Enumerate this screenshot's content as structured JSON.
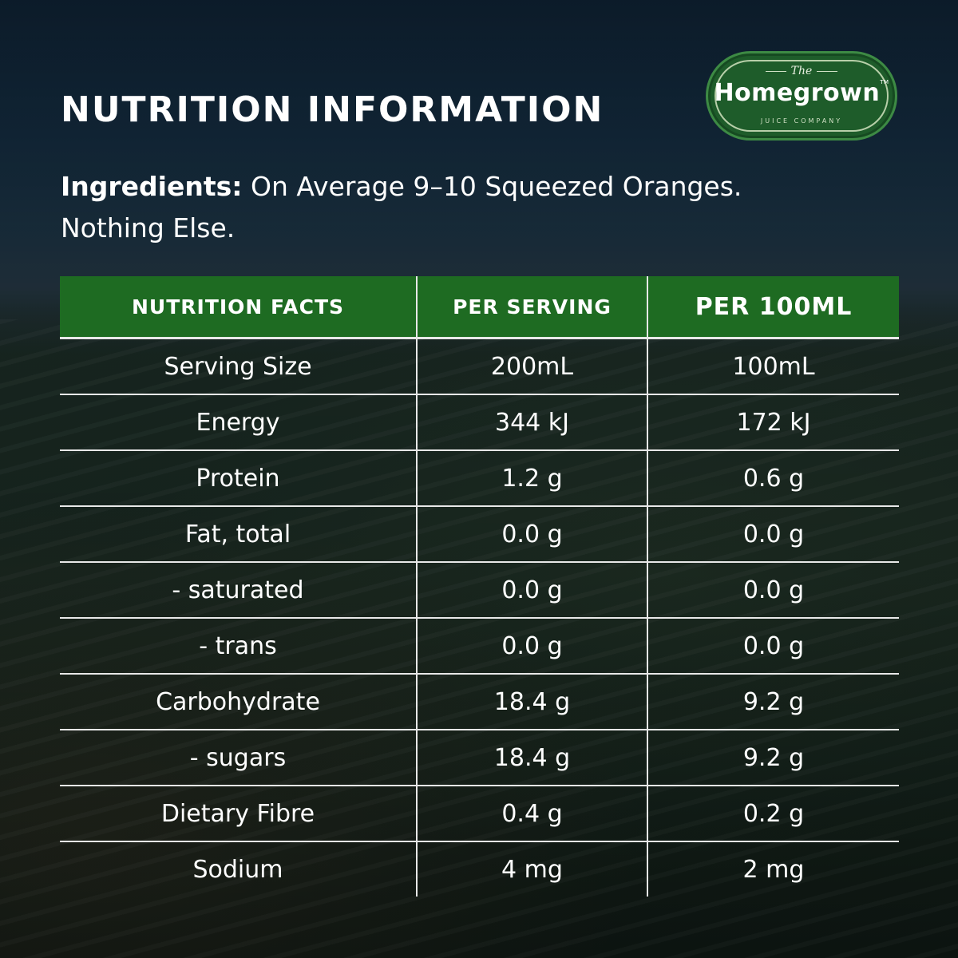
{
  "title": "NUTRITION INFORMATION",
  "logo": {
    "the": "The",
    "name": "Homegrown",
    "tm": "TM",
    "sub": "JUICE COMPANY"
  },
  "ingredients": {
    "label": "Ingredients:",
    "text": " On Average 9–10 Squeezed Oranges.",
    "text2": "Nothing Else."
  },
  "table": {
    "headers": [
      "NUTRITION FACTS",
      "PER SERVING",
      "PER 100ML"
    ],
    "rows": [
      [
        "Serving Size",
        "200mL",
        "100mL"
      ],
      [
        "Energy",
        "344 kJ",
        "172 kJ"
      ],
      [
        "Protein",
        "1.2 g",
        "0.6 g"
      ],
      [
        "Fat, total",
        "0.0 g",
        "0.0 g"
      ],
      [
        "- saturated",
        "0.0 g",
        "0.0 g"
      ],
      [
        "- trans",
        "0.0 g",
        "0.0 g"
      ],
      [
        "Carbohydrate",
        "18.4 g",
        "9.2 g"
      ],
      [
        "- sugars",
        "18.4 g",
        "9.2 g"
      ],
      [
        "Dietary Fibre",
        "0.4 g",
        "0.2 g"
      ],
      [
        "Sodium",
        "4 mg",
        "2 mg"
      ]
    ]
  },
  "colors": {
    "header_green": "#1e6b22",
    "logo_green": "#1e5c2a",
    "text": "#ffffff"
  }
}
